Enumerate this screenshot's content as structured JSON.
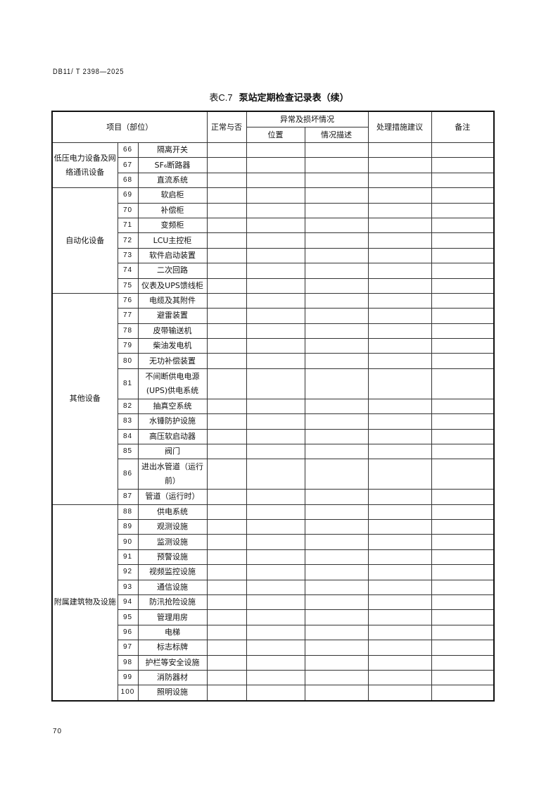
{
  "header": {
    "doc_id": "DB11/ T 2398—2025"
  },
  "title": {
    "code": "表C.7",
    "text": "泵站定期检查记录表（续）"
  },
  "table": {
    "headers": {
      "item": "项目（部位）",
      "normal": "正常与否",
      "abnormal": "异常及损坏情况",
      "position": "位置",
      "description": "情况描述",
      "measures": "处理措施建议",
      "remarks": "备注"
    },
    "groups": [
      {
        "name": "低压电力设备及网络通讯设备",
        "items": [
          {
            "no": "66",
            "name": "隔离开关"
          },
          {
            "no": "67",
            "name": "SF₆断路器"
          },
          {
            "no": "68",
            "name": "直流系统"
          }
        ]
      },
      {
        "name": "自动化设备",
        "items": [
          {
            "no": "69",
            "name": "软启柜"
          },
          {
            "no": "70",
            "name": "补偿柜"
          },
          {
            "no": "71",
            "name": "变频柜"
          },
          {
            "no": "72",
            "name": "LCU主控柜"
          },
          {
            "no": "73",
            "name": "软件启动装置"
          },
          {
            "no": "74",
            "name": "二次回路"
          },
          {
            "no": "75",
            "name": "仪表及UPS馈线柜"
          }
        ]
      },
      {
        "name": "其他设备",
        "items": [
          {
            "no": "76",
            "name": "电缆及其附件"
          },
          {
            "no": "77",
            "name": "避雷装置"
          },
          {
            "no": "78",
            "name": "皮带输送机"
          },
          {
            "no": "79",
            "name": "柴油发电机"
          },
          {
            "no": "80",
            "name": "无功补偿装置"
          },
          {
            "no": "81",
            "name": "不间断供电电源(UPS)供电系统",
            "tall": true
          },
          {
            "no": "82",
            "name": "抽真空系统"
          },
          {
            "no": "83",
            "name": "水锤防护设施"
          },
          {
            "no": "84",
            "name": "高压软启动器"
          },
          {
            "no": "85",
            "name": "阀门"
          },
          {
            "no": "86",
            "name": "进出水管道（运行前）",
            "tall": true
          },
          {
            "no": "87",
            "name": "管道（运行时）"
          }
        ]
      },
      {
        "name": "附属建筑物及设施",
        "items": [
          {
            "no": "88",
            "name": "供电系统"
          },
          {
            "no": "89",
            "name": "观测设施"
          },
          {
            "no": "90",
            "name": "监测设施"
          },
          {
            "no": "91",
            "name": "预警设施"
          },
          {
            "no": "92",
            "name": "视频监控设施"
          },
          {
            "no": "93",
            "name": "通信设施"
          },
          {
            "no": "94",
            "name": "防汛抢险设施"
          },
          {
            "no": "95",
            "name": "管理用房"
          },
          {
            "no": "96",
            "name": "电梯"
          },
          {
            "no": "97",
            "name": "标志标牌"
          },
          {
            "no": "98",
            "name": "护栏等安全设施"
          },
          {
            "no": "99",
            "name": "消防器材"
          },
          {
            "no": "100",
            "name": "照明设施"
          }
        ]
      }
    ]
  },
  "footer": {
    "page_number": "70"
  }
}
